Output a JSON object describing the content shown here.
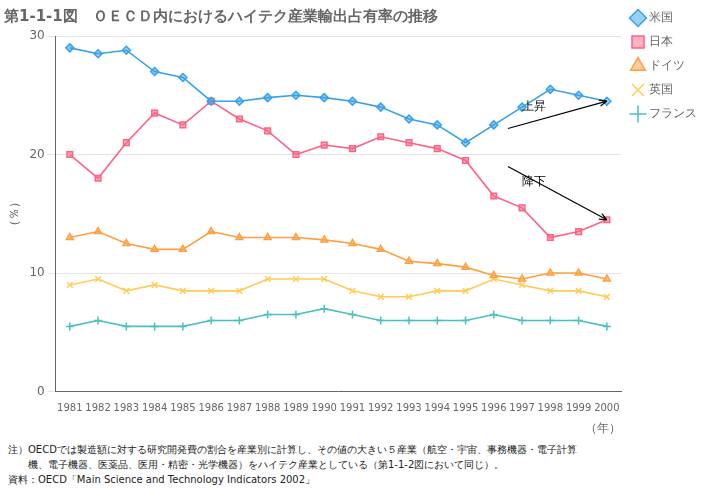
{
  "chart_data": {
    "type": "line",
    "title": "第1-1-1図　ＯＥＣＤ内におけるハイテク産業輸出占有率の推移",
    "x_label": "（年）",
    "y_label": "（％）",
    "x": [
      1981,
      1982,
      1983,
      1984,
      1985,
      1986,
      1987,
      1988,
      1989,
      1990,
      1991,
      1992,
      1993,
      1994,
      1995,
      1996,
      1997,
      1998,
      1999,
      2000
    ],
    "series": [
      {
        "name": "米国",
        "marker": "diamond",
        "values": [
          29.0,
          28.5,
          28.8,
          27.0,
          26.5,
          24.5,
          24.5,
          24.8,
          25.0,
          24.8,
          24.5,
          24.0,
          23.0,
          22.5,
          21.0,
          22.5,
          24.0,
          25.5,
          25.0,
          24.5
        ]
      },
      {
        "name": "日本",
        "marker": "square",
        "values": [
          20.0,
          18.0,
          21.0,
          23.5,
          22.5,
          24.5,
          23.0,
          22.0,
          20.0,
          20.8,
          20.5,
          21.5,
          21.0,
          20.5,
          19.5,
          16.5,
          15.5,
          13.0,
          13.5,
          14.5
        ]
      },
      {
        "name": "ドイツ",
        "marker": "triangle",
        "values": [
          13.0,
          13.5,
          12.5,
          12.0,
          12.0,
          13.5,
          13.0,
          13.0,
          13.0,
          12.8,
          12.5,
          12.0,
          11.0,
          10.8,
          10.5,
          9.8,
          9.5,
          10.0,
          10.0,
          9.5
        ]
      },
      {
        "name": "英国",
        "marker": "x",
        "values": [
          9.0,
          9.5,
          8.5,
          9.0,
          8.5,
          8.5,
          8.5,
          9.5,
          9.5,
          9.5,
          8.5,
          8.0,
          8.0,
          8.5,
          8.5,
          9.5,
          9.0,
          8.5,
          8.5,
          8.0
        ]
      },
      {
        "name": "フランス",
        "marker": "plus",
        "values": [
          5.5,
          6.0,
          5.5,
          5.5,
          5.5,
          6.0,
          6.0,
          6.5,
          6.5,
          7.0,
          6.5,
          6.0,
          6.0,
          6.0,
          6.0,
          6.5,
          6.0,
          6.0,
          6.0,
          5.5
        ]
      }
    ],
    "xlim": [
      1980.5,
      2000.5
    ],
    "xticks": [
      1981,
      1982,
      1983,
      1984,
      1985,
      1986,
      1987,
      1988,
      1989,
      1990,
      1991,
      1992,
      1993,
      1994,
      1995,
      1996,
      1997,
      1998,
      1999,
      2000
    ],
    "ylim": [
      0,
      30
    ],
    "yticks": [
      0,
      10,
      20,
      30
    ],
    "grid": true,
    "legend": "right",
    "annotations": [
      "上昇",
      "降下"
    ],
    "notes": [
      "注）OECDでは製造額に対する研究開発費の割合を産業別に計算し、その値の大きい５産業（航空・宇宙、事務機器・電子計算",
      "　　機、電子機器、医薬品、医用・精密・光学機器）をハイテク産業としている（第1-1-2図において同じ）。"
    ],
    "source": "資料：OECD「Main Science and Technology Indicators 2002」"
  }
}
